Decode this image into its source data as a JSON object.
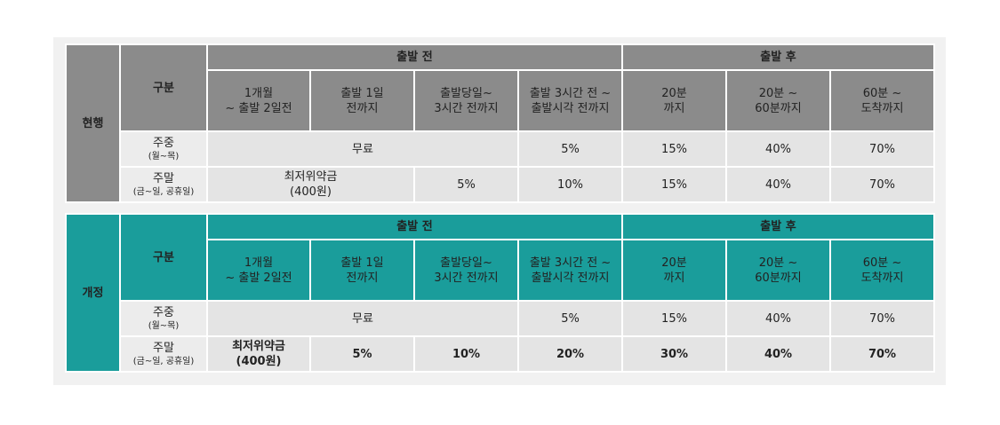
{
  "sections": [
    {
      "side_label": "현행",
      "gubun": "구분",
      "before_label": "출발 전",
      "after_label": "출발 후",
      "headers": [
        "1개월\n~ 출발 2일전",
        "출발 1일\n전까지",
        "출발당일~\n3시간 전까지",
        "출발 3시간 전 ~\n출발시각 전까지",
        "20분\n까지",
        "20분 ~\n60분까지",
        "60분 ~\n도착까지"
      ],
      "weekday": {
        "label": "주중",
        "sub": "(월~목)",
        "free": "무료",
        "c4": "5%",
        "c5": "15%",
        "c6": "40%",
        "c7": "70%"
      },
      "weekend": {
        "label": "주말",
        "sub": "(금~일, 공휴일)",
        "min_fee": "최저위약금\n(400원)",
        "c3": "5%",
        "c4": "10%",
        "c5": "15%",
        "c6": "40%",
        "c7": "70%"
      }
    },
    {
      "side_label": "개정",
      "gubun": "구분",
      "before_label": "출발 전",
      "after_label": "출발 후",
      "headers": [
        "1개월\n~ 출발 2일전",
        "출발 1일\n전까지",
        "출발당일~\n3시간 전까지",
        "출발 3시간 전 ~\n출발시각 전까지",
        "20분\n까지",
        "20분 ~\n60분까지",
        "60분 ~\n도착까지"
      ],
      "weekday": {
        "label": "주중",
        "sub": "(월~목)",
        "free": "무료",
        "c4": "5%",
        "c5": "15%",
        "c6": "40%",
        "c7": "70%"
      },
      "weekend": {
        "label": "주말",
        "sub": "(금~일, 공휴일)",
        "c1": "최저위약금\n(400원)",
        "c2": "5%",
        "c3": "10%",
        "c4": "20%",
        "c5": "30%",
        "c6": "40%",
        "c7": "70%"
      }
    }
  ],
  "colors": {
    "current": "#8b8b8b",
    "revised": "#1a9d9b",
    "cell": "#e4e4e4"
  }
}
